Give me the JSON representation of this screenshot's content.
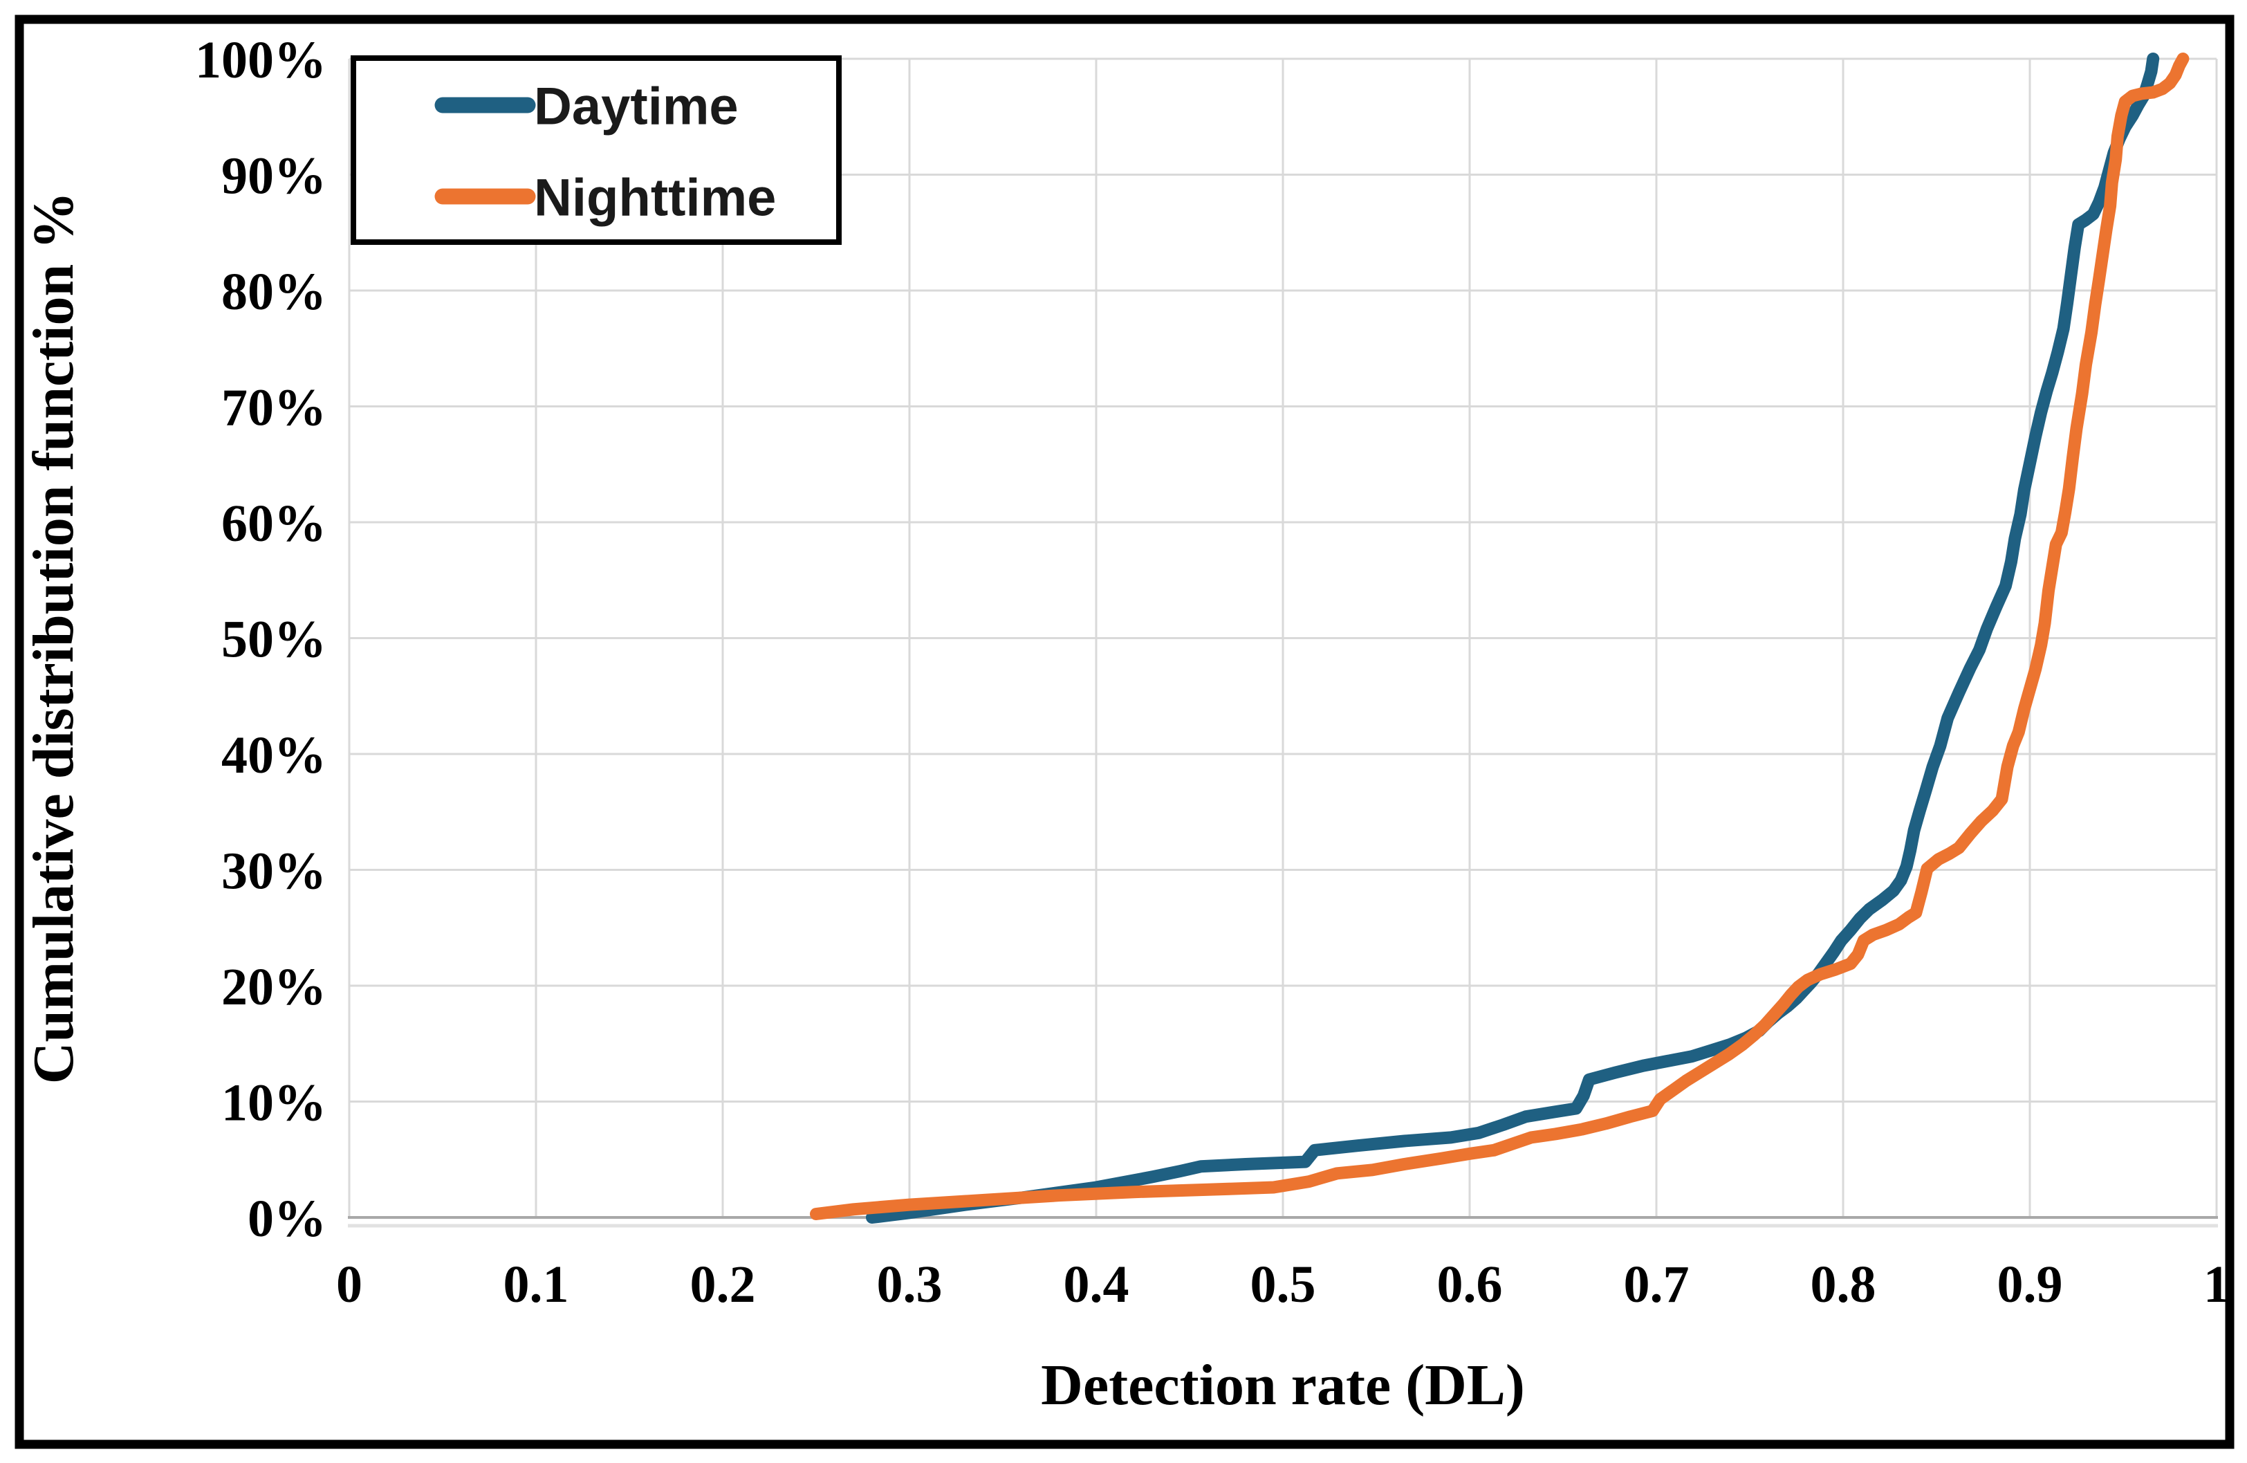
{
  "figure": {
    "background": "#FFFFFF",
    "border_color": "#000000",
    "gridline_color": "#D9D9D9",
    "axis_line_color": "#A8A8A8",
    "axis_shadow_color": "#E2E2E2"
  },
  "legend": {
    "items": [
      {
        "label": "Daytime",
        "color": "#1F6082"
      },
      {
        "label": "Nighttime",
        "color": "#EC7430"
      }
    ]
  },
  "chart_data": {
    "type": "line",
    "title": "",
    "xlabel": "Detection rate (DL)",
    "ylabel": "Cumulative distribution function %",
    "xlim": [
      0,
      1
    ],
    "ylim": [
      0,
      100
    ],
    "grid": true,
    "legend_position": "top-left",
    "x_ticks": [
      {
        "label": "0",
        "value": 0
      },
      {
        "label": "0.1",
        "value": 0.1
      },
      {
        "label": "0.2",
        "value": 0.2
      },
      {
        "label": "0.3",
        "value": 0.3
      },
      {
        "label": "0.4",
        "value": 0.4
      },
      {
        "label": "0.5",
        "value": 0.5
      },
      {
        "label": "0.6",
        "value": 0.6
      },
      {
        "label": "0.7",
        "value": 0.7
      },
      {
        "label": "0.8",
        "value": 0.8
      },
      {
        "label": "0.9",
        "value": 0.9
      },
      {
        "label": "1",
        "value": 1
      }
    ],
    "y_ticks": [
      {
        "label": "0%",
        "value": 0
      },
      {
        "label": "10%",
        "value": 10
      },
      {
        "label": "20%",
        "value": 20
      },
      {
        "label": "30%",
        "value": 30
      },
      {
        "label": "40%",
        "value": 40
      },
      {
        "label": "50%",
        "value": 50
      },
      {
        "label": "60%",
        "value": 60
      },
      {
        "label": "70%",
        "value": 70
      },
      {
        "label": "80%",
        "value": 80
      },
      {
        "label": "90%",
        "value": 90
      },
      {
        "label": "100%",
        "value": 100
      }
    ],
    "series": [
      {
        "name": "Daytime",
        "color": "#1F6082",
        "points": [
          [
            0.28,
            0
          ],
          [
            0.3,
            0.4
          ],
          [
            0.33,
            1.1
          ],
          [
            0.36,
            1.7
          ],
          [
            0.4,
            2.6
          ],
          [
            0.43,
            3.5
          ],
          [
            0.445,
            4.0
          ],
          [
            0.456,
            4.4
          ],
          [
            0.48,
            4.6
          ],
          [
            0.512,
            4.8
          ],
          [
            0.517,
            5.8
          ],
          [
            0.54,
            6.2
          ],
          [
            0.565,
            6.6
          ],
          [
            0.59,
            6.9
          ],
          [
            0.605,
            7.3
          ],
          [
            0.618,
            8.0
          ],
          [
            0.63,
            8.7
          ],
          [
            0.645,
            9.1
          ],
          [
            0.657,
            9.4
          ],
          [
            0.661,
            10.5
          ],
          [
            0.664,
            11.9
          ],
          [
            0.678,
            12.5
          ],
          [
            0.693,
            13.1
          ],
          [
            0.706,
            13.5
          ],
          [
            0.719,
            13.9
          ],
          [
            0.729,
            14.4
          ],
          [
            0.739,
            14.9
          ],
          [
            0.748,
            15.5
          ],
          [
            0.755,
            16.1
          ],
          [
            0.76,
            16.9
          ],
          [
            0.765,
            17.6
          ],
          [
            0.77,
            18.2
          ],
          [
            0.775,
            18.9
          ],
          [
            0.779,
            19.6
          ],
          [
            0.783,
            20.3
          ],
          [
            0.787,
            21.1
          ],
          [
            0.791,
            22.0
          ],
          [
            0.795,
            22.9
          ],
          [
            0.799,
            23.9
          ],
          [
            0.804,
            24.8
          ],
          [
            0.809,
            25.8
          ],
          [
            0.814,
            26.6
          ],
          [
            0.821,
            27.4
          ],
          [
            0.827,
            28.2
          ],
          [
            0.831,
            29.1
          ],
          [
            0.834,
            30.3
          ],
          [
            0.836,
            31.7
          ],
          [
            0.838,
            33.4
          ],
          [
            0.841,
            35.1
          ],
          [
            0.844,
            36.7
          ],
          [
            0.848,
            38.9
          ],
          [
            0.852,
            40.7
          ],
          [
            0.856,
            43.1
          ],
          [
            0.862,
            45.3
          ],
          [
            0.868,
            47.4
          ],
          [
            0.873,
            49.0
          ],
          [
            0.877,
            50.8
          ],
          [
            0.882,
            52.7
          ],
          [
            0.887,
            54.5
          ],
          [
            0.89,
            56.6
          ],
          [
            0.892,
            58.6
          ],
          [
            0.895,
            60.7
          ],
          [
            0.897,
            62.8
          ],
          [
            0.9,
            65.1
          ],
          [
            0.903,
            67.4
          ],
          [
            0.906,
            69.5
          ],
          [
            0.909,
            71.3
          ],
          [
            0.912,
            72.9
          ],
          [
            0.915,
            74.7
          ],
          [
            0.918,
            76.7
          ],
          [
            0.92,
            78.9
          ],
          [
            0.922,
            81.3
          ],
          [
            0.924,
            83.7
          ],
          [
            0.926,
            85.7
          ],
          [
            0.93,
            86.1
          ],
          [
            0.934,
            86.6
          ],
          [
            0.937,
            87.6
          ],
          [
            0.94,
            88.9
          ],
          [
            0.942,
            90.1
          ],
          [
            0.945,
            91.9
          ],
          [
            0.948,
            93.1
          ],
          [
            0.951,
            94.1
          ],
          [
            0.955,
            95.1
          ],
          [
            0.958,
            96.0
          ],
          [
            0.961,
            96.8
          ],
          [
            0.963,
            97.8
          ],
          [
            0.965,
            98.9
          ],
          [
            0.966,
            100
          ]
        ]
      },
      {
        "name": "Nighttime",
        "color": "#EC7430",
        "points": [
          [
            0.25,
            0.3
          ],
          [
            0.27,
            0.7
          ],
          [
            0.3,
            1.1
          ],
          [
            0.34,
            1.5
          ],
          [
            0.38,
            1.9
          ],
          [
            0.42,
            2.2
          ],
          [
            0.46,
            2.4
          ],
          [
            0.495,
            2.6
          ],
          [
            0.514,
            3.1
          ],
          [
            0.529,
            3.8
          ],
          [
            0.548,
            4.1
          ],
          [
            0.565,
            4.6
          ],
          [
            0.585,
            5.1
          ],
          [
            0.6,
            5.5
          ],
          [
            0.613,
            5.8
          ],
          [
            0.622,
            6.3
          ],
          [
            0.633,
            6.9
          ],
          [
            0.646,
            7.2
          ],
          [
            0.66,
            7.6
          ],
          [
            0.673,
            8.1
          ],
          [
            0.686,
            8.7
          ],
          [
            0.698,
            9.2
          ],
          [
            0.702,
            10.2
          ],
          [
            0.709,
            11.0
          ],
          [
            0.716,
            11.8
          ],
          [
            0.723,
            12.5
          ],
          [
            0.731,
            13.3
          ],
          [
            0.739,
            14.1
          ],
          [
            0.746,
            14.9
          ],
          [
            0.752,
            15.7
          ],
          [
            0.758,
            16.6
          ],
          [
            0.763,
            17.5
          ],
          [
            0.768,
            18.4
          ],
          [
            0.772,
            19.2
          ],
          [
            0.776,
            19.9
          ],
          [
            0.781,
            20.5
          ],
          [
            0.788,
            21.0
          ],
          [
            0.796,
            21.4
          ],
          [
            0.804,
            21.9
          ],
          [
            0.808,
            22.7
          ],
          [
            0.811,
            23.9
          ],
          [
            0.816,
            24.4
          ],
          [
            0.823,
            24.8
          ],
          [
            0.83,
            25.3
          ],
          [
            0.835,
            25.9
          ],
          [
            0.839,
            26.3
          ],
          [
            0.842,
            28.1
          ],
          [
            0.845,
            30.1
          ],
          [
            0.851,
            30.9
          ],
          [
            0.857,
            31.4
          ],
          [
            0.862,
            31.9
          ],
          [
            0.868,
            33.1
          ],
          [
            0.874,
            34.2
          ],
          [
            0.88,
            35.1
          ],
          [
            0.885,
            36.1
          ],
          [
            0.888,
            38.9
          ],
          [
            0.891,
            40.7
          ],
          [
            0.894,
            41.9
          ],
          [
            0.897,
            43.9
          ],
          [
            0.9,
            45.6
          ],
          [
            0.903,
            47.3
          ],
          [
            0.906,
            49.4
          ],
          [
            0.908,
            51.3
          ],
          [
            0.91,
            54.1
          ],
          [
            0.912,
            56.1
          ],
          [
            0.914,
            58.1
          ],
          [
            0.917,
            59.1
          ],
          [
            0.919,
            60.9
          ],
          [
            0.921,
            62.9
          ],
          [
            0.923,
            65.6
          ],
          [
            0.925,
            68.1
          ],
          [
            0.928,
            71.1
          ],
          [
            0.93,
            73.6
          ],
          [
            0.933,
            76.4
          ],
          [
            0.935,
            78.8
          ],
          [
            0.937,
            80.9
          ],
          [
            0.939,
            83.1
          ],
          [
            0.941,
            85.3
          ],
          [
            0.943,
            87.3
          ],
          [
            0.944,
            89.3
          ],
          [
            0.946,
            91.3
          ],
          [
            0.947,
            93.3
          ],
          [
            0.949,
            95.1
          ],
          [
            0.951,
            96.3
          ],
          [
            0.955,
            96.8
          ],
          [
            0.96,
            97.0
          ],
          [
            0.966,
            97.1
          ],
          [
            0.971,
            97.4
          ],
          [
            0.975,
            97.9
          ],
          [
            0.978,
            98.6
          ],
          [
            0.98,
            99.4
          ],
          [
            0.982,
            100
          ]
        ]
      }
    ]
  }
}
